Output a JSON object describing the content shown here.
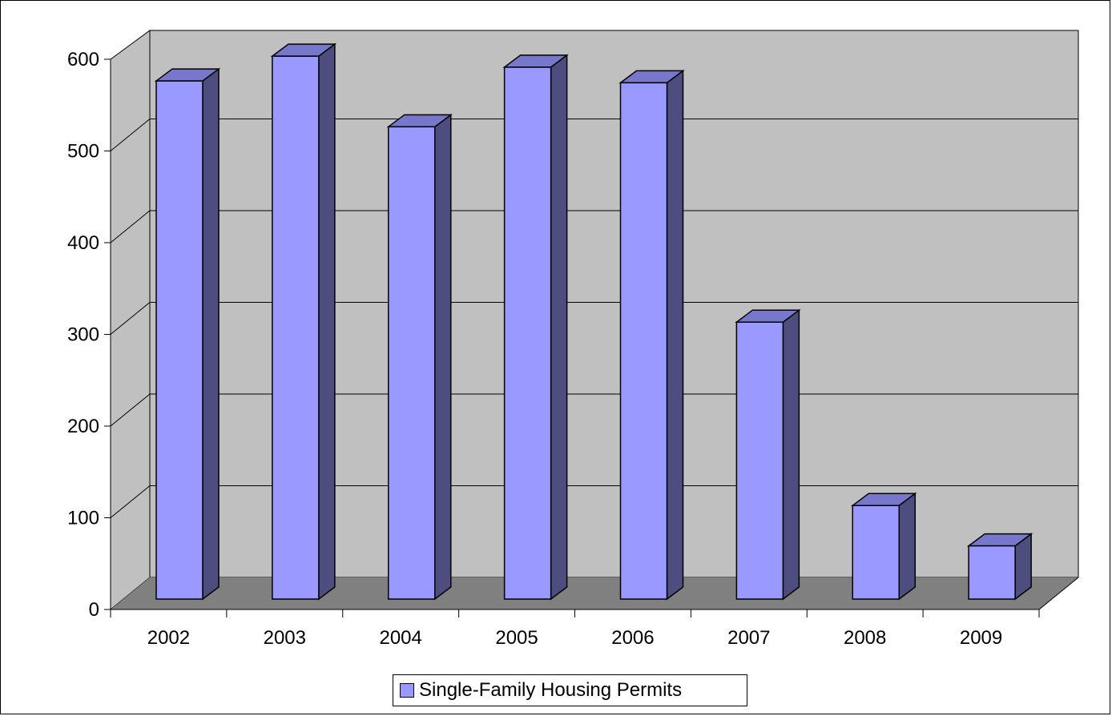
{
  "chart_data": {
    "type": "bar",
    "style": "3d-column",
    "categories": [
      "2002",
      "2003",
      "2004",
      "2005",
      "2006",
      "2007",
      "2008",
      "2009"
    ],
    "series": [
      {
        "name": "Single-Family Housing Permits",
        "values": [
          565,
          592,
          515,
          580,
          563,
          302,
          102,
          58
        ],
        "color": "#9999ff",
        "side_color": "#4d4d80"
      }
    ],
    "ylim": [
      0,
      600
    ],
    "yticks": [
      "0",
      "100",
      "200",
      "300",
      "400",
      "500",
      "600"
    ],
    "grid": true,
    "legend_position": "bottom",
    "colors": {
      "back_wall": "#c0c0c0",
      "floor": "#808080",
      "gridline": "#000000"
    }
  }
}
